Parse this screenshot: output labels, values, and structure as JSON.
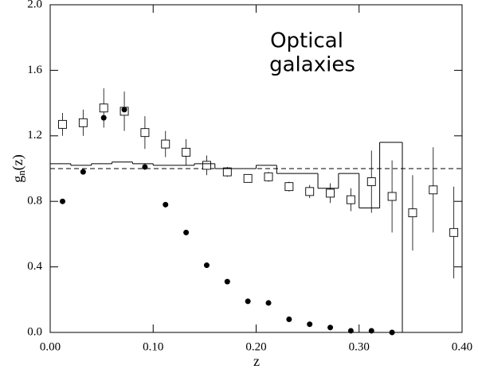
{
  "chart_data": {
    "type": "scatter",
    "xlabel": "z",
    "ylabel": {
      "base": "g",
      "sub": "n",
      "rest": "(z)"
    },
    "annotation": [
      "Optical",
      "galaxies"
    ],
    "xlim": [
      0,
      0.4
    ],
    "ylim": [
      0,
      2.0
    ],
    "xticks": [
      {
        "value": 0,
        "label": "0.00"
      },
      {
        "value": 0.1,
        "label": "0.10"
      },
      {
        "value": 0.2,
        "label": "0.20"
      },
      {
        "value": 0.3,
        "label": "0.30"
      },
      {
        "value": 0.4,
        "label": "0.40"
      }
    ],
    "yticks": [
      {
        "value": 0,
        "label": "0.0"
      },
      {
        "value": 0.4,
        "label": "0.4"
      },
      {
        "value": 0.8,
        "label": "0.8"
      },
      {
        "value": 1.2,
        "label": "1.2"
      },
      {
        "value": 1.6,
        "label": "1.6"
      },
      {
        "value": 2.0,
        "label": "2.0"
      }
    ],
    "reference_line": 1.0,
    "series": [
      {
        "marker": "open-square",
        "color": "#000000",
        "x": [
          0.012,
          0.032,
          0.052,
          0.072,
          0.092,
          0.112,
          0.132,
          0.152,
          0.172,
          0.192,
          0.212,
          0.232,
          0.252,
          0.272,
          0.292,
          0.312,
          0.332,
          0.352,
          0.372,
          0.392
        ],
        "values": [
          1.27,
          1.28,
          1.37,
          1.35,
          1.22,
          1.15,
          1.1,
          1.02,
          0.98,
          0.94,
          0.95,
          0.89,
          0.86,
          0.85,
          0.81,
          0.92,
          0.83,
          0.73,
          0.87,
          0.61
        ],
        "errors": [
          0.07,
          0.08,
          0.12,
          0.12,
          0.1,
          0.08,
          0.08,
          0.06,
          0.03,
          0.02,
          0.03,
          0.03,
          0.04,
          0.06,
          0.07,
          0.19,
          0.22,
          0.23,
          0.26,
          0.28
        ]
      },
      {
        "marker": "filled-circle",
        "color": "#000000",
        "x": [
          0.012,
          0.032,
          0.052,
          0.072,
          0.092,
          0.112,
          0.132,
          0.152,
          0.172,
          0.192,
          0.212,
          0.232,
          0.252,
          0.272,
          0.292,
          0.312,
          0.332
        ],
        "values": [
          0.8,
          0.98,
          1.31,
          1.36,
          1.01,
          0.78,
          0.61,
          0.41,
          0.31,
          0.19,
          0.18,
          0.08,
          0.05,
          0.03,
          0.01,
          0.01,
          0.0
        ]
      },
      {
        "marker": "step",
        "color": "#000000",
        "bins": [
          0,
          0.02,
          0.04,
          0.06,
          0.08,
          0.1,
          0.12,
          0.14,
          0.16,
          0.18,
          0.2,
          0.22,
          0.24,
          0.26,
          0.28,
          0.3,
          0.32,
          0.342
        ],
        "values": [
          1.03,
          1.02,
          1.03,
          1.04,
          1.03,
          1.02,
          1.02,
          1.03,
          1.0,
          1.0,
          1.02,
          0.97,
          0.97,
          0.88,
          0.97,
          0.76,
          1.16
        ]
      }
    ]
  }
}
